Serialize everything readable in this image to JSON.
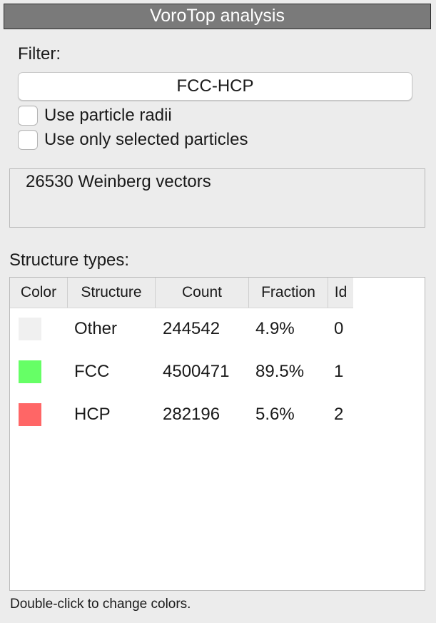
{
  "panel": {
    "title": "VoroTop analysis"
  },
  "filter": {
    "label": "Filter:",
    "selected": "FCC-HCP"
  },
  "options": [
    {
      "label": "Use particle radii",
      "checked": false
    },
    {
      "label": "Use only selected particles",
      "checked": false
    }
  ],
  "status": {
    "text": "26530 Weinberg vectors"
  },
  "structure_types": {
    "label": "Structure types:",
    "columns": [
      "Color",
      "Structure",
      "Count",
      "Fraction",
      "Id"
    ],
    "rows": [
      {
        "color": "#f0f0f0",
        "structure": "Other",
        "count": "244542",
        "fraction": "4.9%",
        "id": "0"
      },
      {
        "color": "#66ff66",
        "structure": "FCC",
        "count": "4500471",
        "fraction": "89.5%",
        "id": "1"
      },
      {
        "color": "#ff6666",
        "structure": "HCP",
        "count": "282196",
        "fraction": "5.6%",
        "id": "2"
      }
    ]
  },
  "hint": "Double-click to change colors."
}
